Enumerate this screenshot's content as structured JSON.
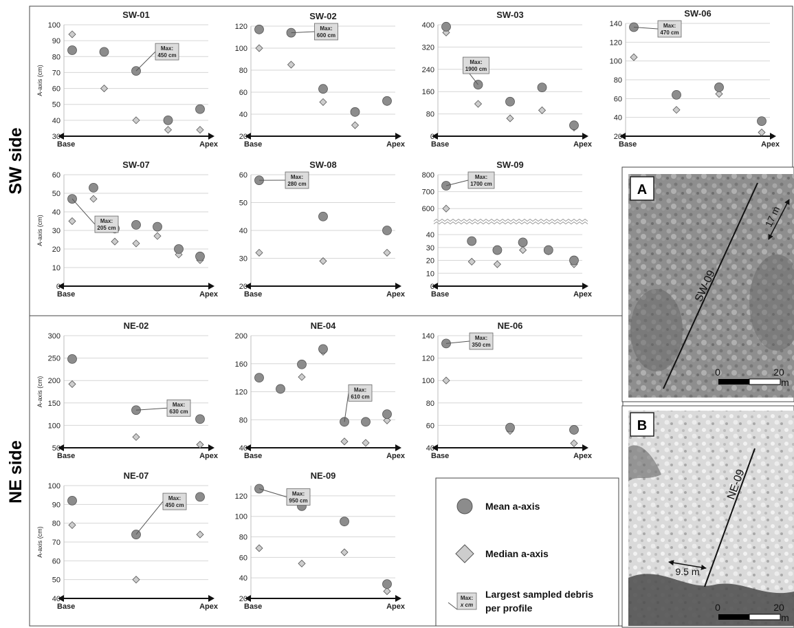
{
  "side_labels": {
    "sw": "SW side",
    "ne": "NE side"
  },
  "axis_labels": {
    "start": "Base",
    "end": "Apex",
    "y": "A-axis (cm)"
  },
  "legend": {
    "mean": "Mean a-axis",
    "median": "Median a-axis",
    "max_line1": "Largest sampled debris",
    "max_line2": "per profile",
    "max_box_top": "Max:",
    "max_box_bottom": "x cm"
  },
  "photos": {
    "a": {
      "letter": "A",
      "profile": "SW-09",
      "distance": "17 m",
      "scale_start": "0",
      "scale_end": "20",
      "scale_unit": "m"
    },
    "b": {
      "letter": "B",
      "profile": "NE-09",
      "distance": "9.5 m",
      "scale_start": "0",
      "scale_end": "20",
      "scale_unit": "m"
    }
  },
  "colors": {
    "mean": "#8c8c8c",
    "median": "#cdcdcd",
    "marker_stroke": "#555555",
    "max_box": "#dcdcdc"
  },
  "chart_data": [
    {
      "type": "scatter",
      "title": "SW-01",
      "ylim": [
        30,
        100
      ],
      "yticks": [
        30,
        40,
        50,
        60,
        70,
        80,
        90,
        100
      ],
      "show_ylabel": true,
      "mean": [
        84,
        83,
        71,
        40,
        47
      ],
      "median": [
        94,
        60,
        40,
        34,
        34
      ],
      "max": {
        "label": "Max:",
        "value": "450 cm",
        "profile_index": 2
      }
    },
    {
      "type": "scatter",
      "title": "SW-02",
      "ylim": [
        20,
        120
      ],
      "yticks": [
        20,
        40,
        60,
        80,
        100,
        120
      ],
      "show_ylabel": false,
      "mean": [
        117,
        114,
        63,
        42,
        52
      ],
      "median": [
        100,
        85,
        51,
        30,
        51
      ],
      "max": {
        "label": "Max:",
        "value": "600 cm",
        "profile_index": 1
      }
    },
    {
      "type": "scatter",
      "title": "SW-03",
      "ylim": [
        0,
        400
      ],
      "yticks": [
        0,
        80,
        160,
        240,
        320,
        400
      ],
      "show_ylabel": false,
      "mean": [
        393,
        185,
        124,
        175,
        39
      ],
      "median": [
        372,
        116,
        64,
        93,
        31
      ],
      "max": {
        "label": "Max:",
        "value": "1900 cm",
        "profile_index": 1
      }
    },
    {
      "type": "scatter",
      "title": "SW-06",
      "ylim": [
        20,
        140
      ],
      "yticks": [
        20,
        40,
        60,
        80,
        100,
        120,
        140
      ],
      "show_ylabel": false,
      "mean": [
        136,
        64,
        72,
        36
      ],
      "median": [
        104,
        48,
        65,
        24
      ],
      "max": {
        "label": "Max:",
        "value": "470 cm",
        "profile_index": 0
      }
    },
    {
      "type": "scatter",
      "title": "SW-07",
      "ylim": [
        0,
        60
      ],
      "yticks": [
        0,
        10,
        20,
        30,
        40,
        50,
        60
      ],
      "show_ylabel": true,
      "mean": [
        47,
        53,
        31,
        33,
        32,
        20,
        16
      ],
      "median": [
        35,
        47,
        24,
        23,
        27,
        17,
        14
      ],
      "max": {
        "label": "Max:",
        "value": "205 cm",
        "profile_index": 0
      }
    },
    {
      "type": "scatter",
      "title": "SW-08",
      "ylim": [
        20,
        60
      ],
      "yticks": [
        20,
        30,
        40,
        50,
        60
      ],
      "show_ylabel": false,
      "mean": [
        58,
        45,
        40
      ],
      "median": [
        32,
        29,
        32
      ],
      "max": {
        "label": "Max:",
        "value": "280 cm",
        "profile_index": 0
      }
    },
    {
      "type": "scatter",
      "title": "SW-09",
      "ylim": [
        0,
        800
      ],
      "yticks": [
        0,
        10,
        20,
        30,
        40,
        600,
        700,
        800
      ],
      "broken_axis": {
        "lower": [
          0,
          45
        ],
        "upper": [
          550,
          800
        ]
      },
      "show_ylabel": false,
      "mean": [
        735,
        35,
        28,
        34,
        28,
        20
      ],
      "median": [
        600,
        19,
        17,
        28,
        27,
        17
      ],
      "max": {
        "label": "Max:",
        "value": "1700 cm",
        "profile_index": 0
      }
    },
    {
      "type": "scatter",
      "title": "NE-02",
      "ylim": [
        50,
        300
      ],
      "yticks": [
        50,
        100,
        150,
        200,
        250,
        300
      ],
      "show_ylabel": true,
      "mean": [
        248,
        134,
        114
      ],
      "median": [
        192,
        74,
        57
      ],
      "max": {
        "label": "Max:",
        "value": "630 cm",
        "profile_index": 1
      }
    },
    {
      "type": "scatter",
      "title": "NE-04",
      "ylim": [
        40,
        200
      ],
      "yticks": [
        40,
        80,
        120,
        160,
        200
      ],
      "show_ylabel": false,
      "mean": [
        140,
        124,
        159,
        181,
        77,
        77,
        88
      ],
      "median": [
        140,
        124,
        141,
        177,
        49,
        47,
        79
      ],
      "max": {
        "label": "Max:",
        "value": "610 cm",
        "profile_index": 4
      }
    },
    {
      "type": "scatter",
      "title": "NE-06",
      "ylim": [
        40,
        140
      ],
      "yticks": [
        40,
        60,
        80,
        100,
        120,
        140
      ],
      "show_ylabel": false,
      "mean": [
        133,
        58,
        56
      ],
      "median": [
        100,
        55,
        44
      ],
      "max": {
        "label": "Max:",
        "value": "350 cm",
        "profile_index": 0
      }
    },
    {
      "type": "scatter",
      "title": "NE-07",
      "ylim": [
        40,
        100
      ],
      "yticks": [
        40,
        50,
        60,
        70,
        80,
        90,
        100
      ],
      "show_ylabel": true,
      "mean": [
        92,
        74,
        94
      ],
      "median": [
        79,
        50,
        74
      ],
      "max": {
        "label": "Max:",
        "value": "450 cm",
        "profile_index": 1
      }
    },
    {
      "type": "scatter",
      "title": "NE-09",
      "ylim": [
        20,
        130
      ],
      "yticks": [
        20,
        40,
        60,
        80,
        100,
        120
      ],
      "show_ylabel": false,
      "mean": [
        127,
        110,
        95,
        34
      ],
      "median": [
        69,
        54,
        65,
        27
      ],
      "max": {
        "label": "Max:",
        "value": "950 cm",
        "profile_index": 0
      }
    }
  ]
}
